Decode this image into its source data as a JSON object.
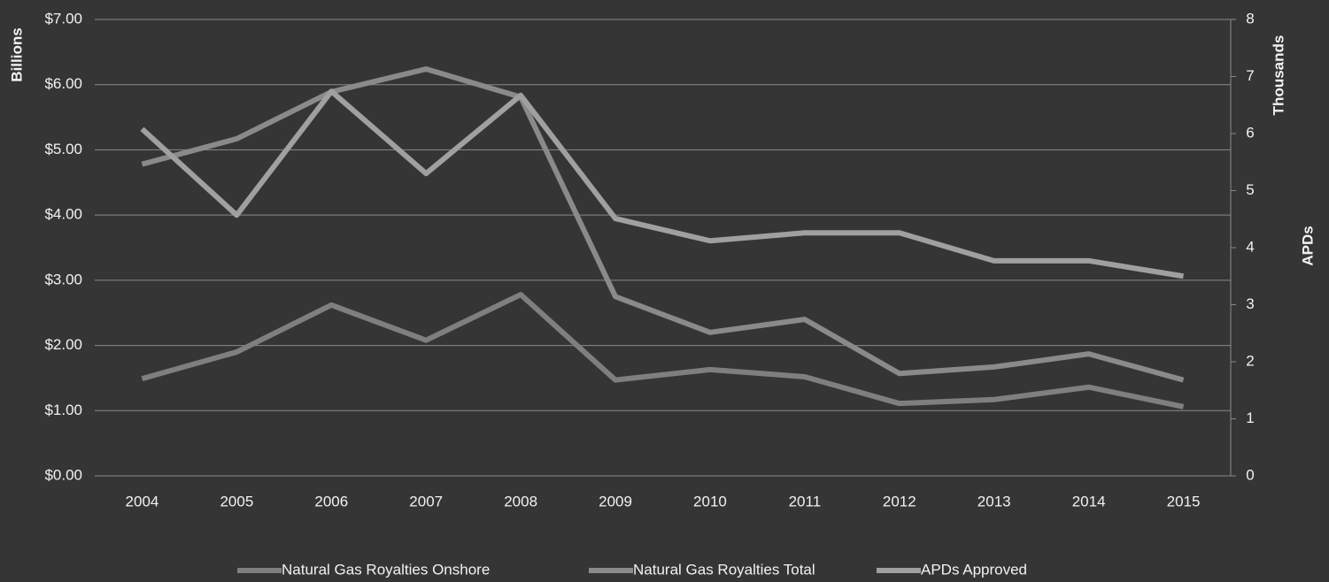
{
  "chart_data": {
    "type": "line",
    "y_label": "Billions",
    "y2_unit": "Thousands",
    "y2_label": "APDs",
    "categories": [
      "2004",
      "2005",
      "2006",
      "2007",
      "2008",
      "2009",
      "2010",
      "2011",
      "2012",
      "2013",
      "2014",
      "2015"
    ],
    "series": [
      {
        "name": "Natural Gas Royalties Onshore",
        "color": "#7f7f7f",
        "values": [
          1.49,
          1.9,
          2.62,
          2.08,
          2.78,
          1.47,
          1.63,
          1.52,
          1.11,
          1.17,
          1.36,
          1.06
        ]
      },
      {
        "name": "Natural Gas Royalties Total",
        "color": "#8a8a8a",
        "values": [
          4.78,
          5.17,
          5.89,
          6.24,
          5.81,
          2.75,
          2.2,
          2.4,
          1.57,
          1.67,
          1.87,
          1.47
        ]
      },
      {
        "name": "APDs Approved",
        "color": "#a0a0a0",
        "axis": "y2",
        "values": [
          6.08,
          4.57,
          6.74,
          5.3,
          6.67,
          4.51,
          4.12,
          4.26,
          4.26,
          3.77,
          3.77,
          3.5
        ]
      }
    ],
    "ylim": [
      0,
      7
    ],
    "yticks": [
      {
        "value": 0,
        "label": "$0.00"
      },
      {
        "value": 1,
        "label": "$1.00"
      },
      {
        "value": 2,
        "label": "$2.00"
      },
      {
        "value": 3,
        "label": "$3.00"
      },
      {
        "value": 4,
        "label": "$4.00"
      },
      {
        "value": 5,
        "label": "$5.00"
      },
      {
        "value": 6,
        "label": "$6.00"
      },
      {
        "value": 7,
        "label": "$7.00"
      }
    ],
    "y2lim": [
      0,
      8
    ],
    "y2ticks": [
      0,
      1,
      2,
      3,
      4,
      5,
      6,
      7,
      8
    ],
    "grid": true,
    "legend": "bottom"
  }
}
